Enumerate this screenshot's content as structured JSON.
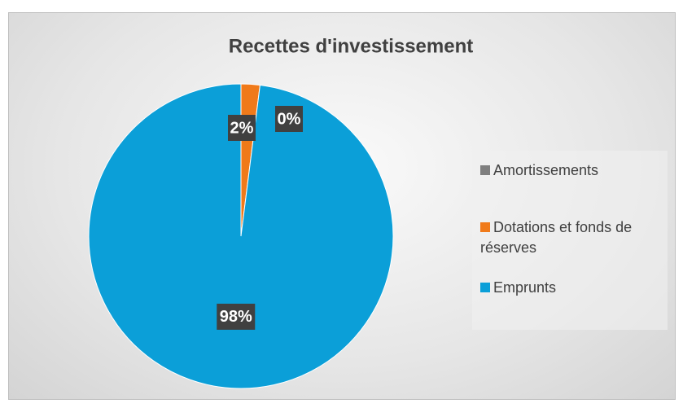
{
  "chart_data": {
    "type": "pie",
    "title": "Recettes d'investissement",
    "categories": [
      "Amortissements",
      "Dotations et fonds de réserves",
      "Emprunts"
    ],
    "values": [
      0,
      2,
      98
    ],
    "value_labels": [
      "0%",
      "2%",
      "98%"
    ],
    "colors": [
      "#7f7f7f",
      "#f07a1a",
      "#0b9fd8"
    ],
    "legend": "right"
  }
}
